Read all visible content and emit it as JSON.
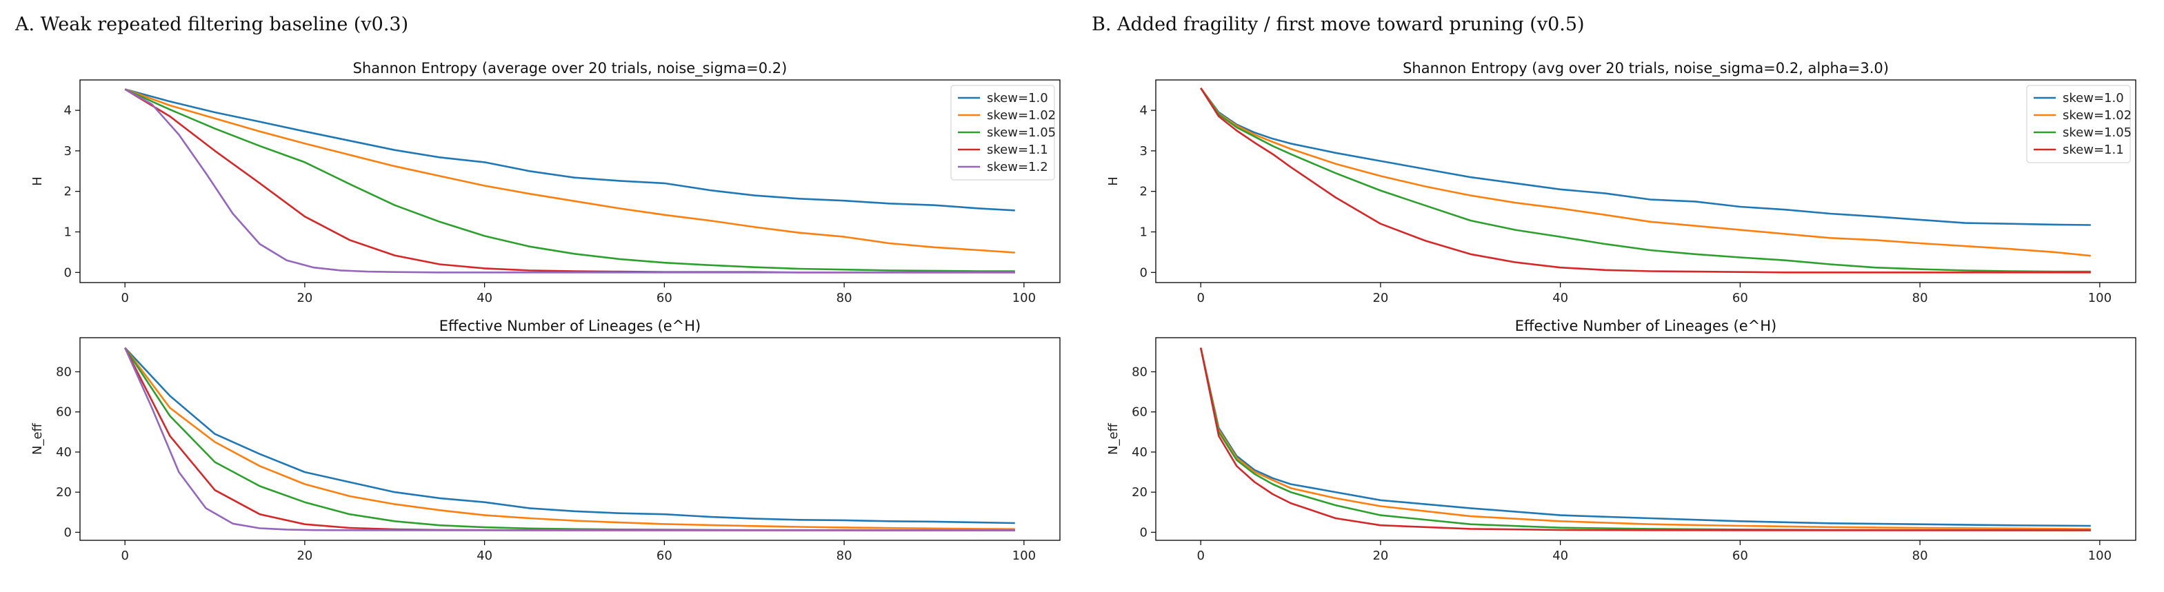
{
  "figure": {
    "panel_a_title": "A. Weak repeated filtering baseline (v0.3)",
    "panel_b_title": "B. Added fragility / first move toward pruning (v0.5)"
  },
  "colors": {
    "skew=1.0": "#1f77b4",
    "skew=1.02": "#ff7f0e",
    "skew=1.05": "#2ca02c",
    "skew=1.1": "#d62728",
    "skew=1.2": "#9467bd"
  },
  "chart_data": [
    {
      "id": "a-entropy",
      "type": "line",
      "title": "Shannon Entropy (average over 20 trials, noise_sigma=0.2)",
      "xlabel": "",
      "ylabel": "H",
      "xlim": [
        -5,
        104
      ],
      "ylim": [
        -0.25,
        4.75
      ],
      "xticks": [
        0,
        20,
        40,
        60,
        80,
        100
      ],
      "yticks": [
        0,
        1,
        2,
        3,
        4
      ],
      "legend": "top-right",
      "series": [
        {
          "name": "skew=1.0",
          "x": [
            0,
            5,
            10,
            15,
            20,
            25,
            30,
            35,
            40,
            45,
            50,
            55,
            60,
            65,
            70,
            75,
            80,
            85,
            90,
            95,
            99
          ],
          "y": [
            4.52,
            4.22,
            3.95,
            3.72,
            3.48,
            3.25,
            3.02,
            2.84,
            2.72,
            2.5,
            2.34,
            2.26,
            2.2,
            2.03,
            1.9,
            1.82,
            1.77,
            1.7,
            1.66,
            1.58,
            1.53
          ]
        },
        {
          "name": "skew=1.02",
          "x": [
            0,
            5,
            10,
            15,
            20,
            25,
            30,
            35,
            40,
            45,
            50,
            55,
            60,
            65,
            70,
            75,
            80,
            85,
            90,
            95,
            99
          ],
          "y": [
            4.52,
            4.12,
            3.8,
            3.48,
            3.18,
            2.9,
            2.62,
            2.38,
            2.14,
            1.94,
            1.76,
            1.58,
            1.42,
            1.28,
            1.12,
            0.98,
            0.88,
            0.72,
            0.62,
            0.55,
            0.49
          ]
        },
        {
          "name": "skew=1.05",
          "x": [
            0,
            5,
            10,
            15,
            20,
            25,
            30,
            35,
            40,
            45,
            50,
            55,
            60,
            65,
            70,
            75,
            80,
            85,
            90,
            95,
            99
          ],
          "y": [
            4.52,
            4.02,
            3.55,
            3.12,
            2.72,
            2.18,
            1.66,
            1.25,
            0.9,
            0.64,
            0.46,
            0.33,
            0.24,
            0.18,
            0.13,
            0.09,
            0.07,
            0.05,
            0.04,
            0.03,
            0.03
          ]
        },
        {
          "name": "skew=1.1",
          "x": [
            0,
            5,
            10,
            15,
            20,
            25,
            30,
            35,
            40,
            45,
            50,
            55,
            60,
            65,
            70,
            75,
            80,
            85,
            90,
            95,
            99
          ],
          "y": [
            4.52,
            3.85,
            3.0,
            2.2,
            1.38,
            0.8,
            0.42,
            0.2,
            0.1,
            0.05,
            0.03,
            0.02,
            0.01,
            0.01,
            0.01,
            0.0,
            0.0,
            0.0,
            0.0,
            0.0,
            0.0
          ]
        },
        {
          "name": "skew=1.2",
          "x": [
            0,
            3,
            6,
            9,
            12,
            15,
            18,
            21,
            24,
            27,
            30,
            35,
            40,
            45,
            50,
            60,
            70,
            80,
            90,
            99
          ],
          "y": [
            4.52,
            4.15,
            3.4,
            2.45,
            1.45,
            0.7,
            0.3,
            0.12,
            0.05,
            0.02,
            0.01,
            0.0,
            0.0,
            0.0,
            0.0,
            0.0,
            0.0,
            0.0,
            0.0,
            0.0
          ]
        }
      ]
    },
    {
      "id": "a-neff",
      "type": "line",
      "title": "Effective Number of Lineages (e^H)",
      "xlabel": "",
      "ylabel": "N_eff",
      "xlim": [
        -5,
        104
      ],
      "ylim": [
        -4,
        97
      ],
      "xticks": [
        0,
        20,
        40,
        60,
        80,
        100
      ],
      "yticks": [
        0,
        20,
        40,
        60,
        80
      ],
      "series": [
        {
          "name": "skew=1.0",
          "x": [
            0,
            5,
            10,
            15,
            20,
            25,
            30,
            35,
            40,
            45,
            50,
            55,
            60,
            65,
            70,
            75,
            80,
            85,
            90,
            95,
            99
          ],
          "y": [
            92,
            68,
            49,
            39,
            30,
            25,
            20,
            17,
            15,
            12,
            10.5,
            9.5,
            9,
            7.7,
            6.8,
            6.2,
            6,
            5.5,
            5.3,
            4.9,
            4.6
          ]
        },
        {
          "name": "skew=1.02",
          "x": [
            0,
            5,
            10,
            15,
            20,
            25,
            30,
            35,
            40,
            45,
            50,
            55,
            60,
            65,
            70,
            75,
            80,
            85,
            90,
            95,
            99
          ],
          "y": [
            92,
            62,
            45,
            33,
            24,
            18,
            14,
            11,
            8.5,
            7,
            5.8,
            4.9,
            4.1,
            3.6,
            3.1,
            2.7,
            2.4,
            2.1,
            1.9,
            1.7,
            1.6
          ]
        },
        {
          "name": "skew=1.05",
          "x": [
            0,
            5,
            10,
            15,
            20,
            25,
            30,
            35,
            40,
            45,
            50,
            55,
            60,
            65,
            70,
            75,
            80,
            85,
            90,
            95,
            99
          ],
          "y": [
            92,
            58,
            35,
            23,
            15,
            9,
            5.5,
            3.5,
            2.5,
            1.9,
            1.6,
            1.4,
            1.3,
            1.2,
            1.1,
            1.1,
            1.1,
            1.05,
            1.05,
            1.03,
            1.03
          ]
        },
        {
          "name": "skew=1.1",
          "x": [
            0,
            5,
            10,
            15,
            20,
            25,
            30,
            35,
            40,
            45,
            50,
            60,
            70,
            80,
            90,
            99
          ],
          "y": [
            92,
            48,
            21,
            9,
            4,
            2.2,
            1.5,
            1.2,
            1.1,
            1.05,
            1.03,
            1.01,
            1.0,
            1.0,
            1.0,
            1.0
          ]
        },
        {
          "name": "skew=1.2",
          "x": [
            0,
            3,
            6,
            9,
            12,
            15,
            18,
            21,
            24,
            30,
            40,
            50,
            60,
            70,
            80,
            90,
            99
          ],
          "y": [
            92,
            62,
            30,
            12,
            4.3,
            2,
            1.35,
            1.1,
            1.05,
            1.01,
            1.0,
            1.0,
            1.0,
            1.0,
            1.0,
            1.0,
            1.0
          ]
        }
      ]
    },
    {
      "id": "b-entropy",
      "type": "line",
      "title": "Shannon Entropy (avg over 20 trials, noise_sigma=0.2, alpha=3.0)",
      "xlabel": "",
      "ylabel": "H",
      "xlim": [
        -5,
        104
      ],
      "ylim": [
        -0.25,
        4.75
      ],
      "xticks": [
        0,
        20,
        40,
        60,
        80,
        100
      ],
      "yticks": [
        0,
        1,
        2,
        3,
        4
      ],
      "legend": "top-right",
      "series": [
        {
          "name": "skew=1.0",
          "x": [
            0,
            2,
            4,
            6,
            8,
            10,
            15,
            20,
            25,
            30,
            35,
            40,
            45,
            50,
            55,
            60,
            65,
            70,
            75,
            80,
            85,
            90,
            95,
            99
          ],
          "y": [
            4.55,
            3.95,
            3.65,
            3.45,
            3.3,
            3.18,
            2.95,
            2.75,
            2.55,
            2.35,
            2.2,
            2.05,
            1.95,
            1.8,
            1.75,
            1.62,
            1.55,
            1.45,
            1.38,
            1.3,
            1.22,
            1.2,
            1.18,
            1.17
          ]
        },
        {
          "name": "skew=1.02",
          "x": [
            0,
            2,
            4,
            6,
            8,
            10,
            15,
            20,
            25,
            30,
            35,
            40,
            45,
            50,
            55,
            60,
            65,
            70,
            75,
            80,
            85,
            90,
            95,
            99
          ],
          "y": [
            4.55,
            3.92,
            3.62,
            3.4,
            3.22,
            3.05,
            2.68,
            2.38,
            2.12,
            1.9,
            1.72,
            1.58,
            1.42,
            1.25,
            1.15,
            1.05,
            0.95,
            0.85,
            0.8,
            0.72,
            0.65,
            0.58,
            0.5,
            0.41
          ]
        },
        {
          "name": "skew=1.05",
          "x": [
            0,
            2,
            4,
            6,
            8,
            10,
            15,
            20,
            25,
            30,
            35,
            40,
            45,
            50,
            55,
            60,
            65,
            70,
            75,
            80,
            85,
            90,
            95,
            99
          ],
          "y": [
            4.55,
            3.9,
            3.58,
            3.35,
            3.12,
            2.92,
            2.45,
            2.02,
            1.65,
            1.28,
            1.05,
            0.88,
            0.7,
            0.55,
            0.45,
            0.37,
            0.3,
            0.2,
            0.12,
            0.08,
            0.05,
            0.03,
            0.02,
            0.02
          ]
        },
        {
          "name": "skew=1.1",
          "x": [
            0,
            2,
            4,
            6,
            8,
            10,
            15,
            20,
            25,
            30,
            35,
            40,
            45,
            50,
            55,
            60,
            65,
            70,
            80,
            90,
            99
          ],
          "y": [
            4.55,
            3.85,
            3.5,
            3.2,
            2.92,
            2.6,
            1.85,
            1.2,
            0.78,
            0.45,
            0.25,
            0.12,
            0.06,
            0.03,
            0.02,
            0.01,
            0.0,
            0.0,
            0.0,
            0.0,
            0.0
          ]
        }
      ]
    },
    {
      "id": "b-neff",
      "type": "line",
      "title": "Effective Number of Lineages (e^H)",
      "xlabel": "",
      "ylabel": "N_eff",
      "xlim": [
        -5,
        104
      ],
      "ylim": [
        -4,
        97
      ],
      "xticks": [
        0,
        20,
        40,
        60,
        80,
        100
      ],
      "yticks": [
        0,
        20,
        40,
        60,
        80
      ],
      "series": [
        {
          "name": "skew=1.0",
          "x": [
            0,
            2,
            4,
            6,
            8,
            10,
            15,
            20,
            30,
            40,
            50,
            60,
            70,
            80,
            90,
            99
          ],
          "y": [
            92,
            52,
            38,
            31,
            27,
            24,
            20,
            16,
            12,
            8.5,
            7,
            5.5,
            4.5,
            4,
            3.5,
            3.2
          ]
        },
        {
          "name": "skew=1.02",
          "x": [
            0,
            2,
            4,
            6,
            8,
            10,
            15,
            20,
            30,
            40,
            50,
            60,
            70,
            80,
            90,
            99
          ],
          "y": [
            92,
            51,
            37,
            30,
            26,
            22,
            17,
            13,
            8,
            5.5,
            4,
            3.2,
            2.6,
            2.2,
            1.9,
            1.6
          ]
        },
        {
          "name": "skew=1.05",
          "x": [
            0,
            2,
            4,
            6,
            8,
            10,
            15,
            20,
            30,
            40,
            50,
            60,
            70,
            80,
            90,
            99
          ],
          "y": [
            92,
            50,
            36,
            29,
            24,
            20,
            13.5,
            8.5,
            4,
            2.3,
            1.7,
            1.4,
            1.2,
            1.1,
            1.05,
            1.02
          ]
        },
        {
          "name": "skew=1.1",
          "x": [
            0,
            2,
            4,
            6,
            8,
            10,
            15,
            20,
            30,
            40,
            50,
            60,
            70,
            80,
            90,
            99
          ],
          "y": [
            92,
            48,
            33,
            25,
            19,
            14.5,
            7,
            3.5,
            1.7,
            1.15,
            1.05,
            1.01,
            1.0,
            1.0,
            1.0,
            1.0
          ]
        }
      ]
    }
  ]
}
